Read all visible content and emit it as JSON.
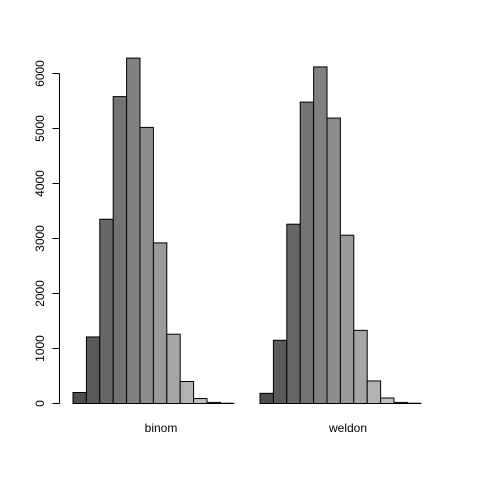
{
  "chart_data": {
    "type": "bar",
    "title": "",
    "xlabel": "",
    "ylabel": "",
    "ylim": [
      0,
      6300
    ],
    "yticks": [
      0,
      1000,
      2000,
      3000,
      4000,
      5000,
      6000
    ],
    "group_labels": [
      "binom",
      "weldon"
    ],
    "bar_count_per_group": 13,
    "groups": [
      {
        "name": "binom",
        "values": [
          200,
          1210,
          3350,
          5580,
          6280,
          5020,
          2920,
          1260,
          400,
          90,
          20,
          5,
          0
        ]
      },
      {
        "name": "weldon",
        "values": [
          185,
          1150,
          3260,
          5480,
          6120,
          5190,
          3060,
          1330,
          410,
          100,
          20,
          5,
          0
        ]
      }
    ],
    "bar_fill_gradient": [
      "#4d4d4d",
      "#e6e6e6"
    ],
    "bar_stroke": "#000000",
    "grid": false,
    "legend": "none"
  }
}
